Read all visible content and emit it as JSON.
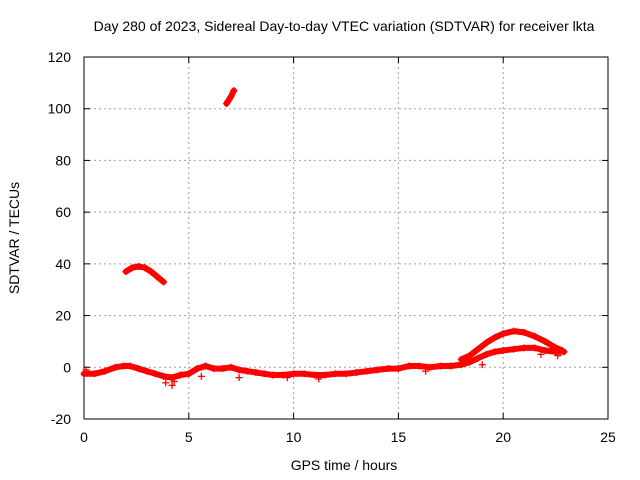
{
  "chart_data": {
    "type": "scatter",
    "title": "Day 280 of 2023, Sidereal Day-to-day VTEC variation (SDTVAR) for receiver lkta",
    "xlabel": "GPS time / hours",
    "ylabel": "SDTVAR / TECUs",
    "xlim": [
      0,
      25
    ],
    "ylim": [
      -20,
      120
    ],
    "xticks": [
      0,
      5,
      10,
      15,
      20,
      25
    ],
    "yticks": [
      -20,
      0,
      20,
      40,
      60,
      80,
      100,
      120
    ],
    "grid": true,
    "marker_color": "#ff0000",
    "series": [
      {
        "name": "main-track",
        "points": [
          [
            0.0,
            -2.5
          ],
          [
            0.5,
            -2.5
          ],
          [
            1.0,
            -1.5
          ],
          [
            1.5,
            0.0
          ],
          [
            1.9,
            0.5
          ],
          [
            2.2,
            0.5
          ],
          [
            2.6,
            -0.5
          ],
          [
            3.0,
            -1.5
          ],
          [
            3.4,
            -2.5
          ],
          [
            3.8,
            -3.5
          ],
          [
            4.2,
            -4.0
          ],
          [
            4.6,
            -3.0
          ],
          [
            5.0,
            -2.5
          ],
          [
            5.4,
            -0.5
          ],
          [
            5.8,
            0.5
          ],
          [
            6.2,
            -0.5
          ],
          [
            6.6,
            -0.5
          ],
          [
            7.0,
            0.0
          ],
          [
            7.4,
            -1.0
          ],
          [
            7.8,
            -1.5
          ],
          [
            8.2,
            -2.0
          ],
          [
            8.6,
            -2.5
          ],
          [
            9.0,
            -3.0
          ],
          [
            9.5,
            -3.0
          ],
          [
            10.0,
            -2.5
          ],
          [
            10.5,
            -2.5
          ],
          [
            11.0,
            -3.0
          ],
          [
            11.5,
            -3.0
          ],
          [
            12.0,
            -2.5
          ],
          [
            12.5,
            -2.5
          ],
          [
            13.0,
            -2.0
          ],
          [
            13.5,
            -1.5
          ],
          [
            14.0,
            -1.0
          ],
          [
            14.5,
            -0.5
          ],
          [
            15.0,
            -0.5
          ],
          [
            15.5,
            0.5
          ],
          [
            16.0,
            0.5
          ],
          [
            16.5,
            0.0
          ],
          [
            17.0,
            0.5
          ],
          [
            17.5,
            0.5
          ],
          [
            18.0,
            1.0
          ],
          [
            18.4,
            2.0
          ],
          [
            18.8,
            3.5
          ],
          [
            19.2,
            5.0
          ],
          [
            19.6,
            6.0
          ],
          [
            20.0,
            6.5
          ],
          [
            20.5,
            7.0
          ],
          [
            21.0,
            7.5
          ],
          [
            21.5,
            7.5
          ],
          [
            22.0,
            6.5
          ],
          [
            22.5,
            6.0
          ],
          [
            22.9,
            6.0
          ]
        ]
      },
      {
        "name": "upper-band",
        "points": [
          [
            18.0,
            3.0
          ],
          [
            18.4,
            4.5
          ],
          [
            18.8,
            7.0
          ],
          [
            19.2,
            9.5
          ],
          [
            19.6,
            11.5
          ],
          [
            20.0,
            13.0
          ],
          [
            20.5,
            14.0
          ],
          [
            21.0,
            13.5
          ],
          [
            21.5,
            12.0
          ],
          [
            22.0,
            10.0
          ],
          [
            22.4,
            8.0
          ],
          [
            22.8,
            6.5
          ]
        ]
      },
      {
        "name": "arc-near-40",
        "points": [
          [
            2.0,
            37.0
          ],
          [
            2.3,
            38.5
          ],
          [
            2.6,
            39.0
          ],
          [
            2.9,
            38.5
          ],
          [
            3.2,
            37.0
          ],
          [
            3.5,
            35.0
          ],
          [
            3.8,
            33.0
          ]
        ]
      },
      {
        "name": "segment-near-105",
        "points": [
          [
            6.8,
            102.0
          ],
          [
            7.0,
            104.5
          ],
          [
            7.15,
            107.0
          ]
        ]
      },
      {
        "name": "outliers",
        "points": [
          [
            3.9,
            -6.0
          ],
          [
            4.3,
            -5.5
          ],
          [
            4.2,
            -7.0
          ],
          [
            5.6,
            -3.5
          ],
          [
            7.4,
            -4.0
          ],
          [
            9.7,
            -4.0
          ],
          [
            11.2,
            -4.5
          ],
          [
            16.3,
            -1.5
          ],
          [
            19.0,
            1.0
          ],
          [
            0.1,
            -1.0
          ],
          [
            21.8,
            5.0
          ],
          [
            22.6,
            4.5
          ]
        ]
      }
    ]
  }
}
